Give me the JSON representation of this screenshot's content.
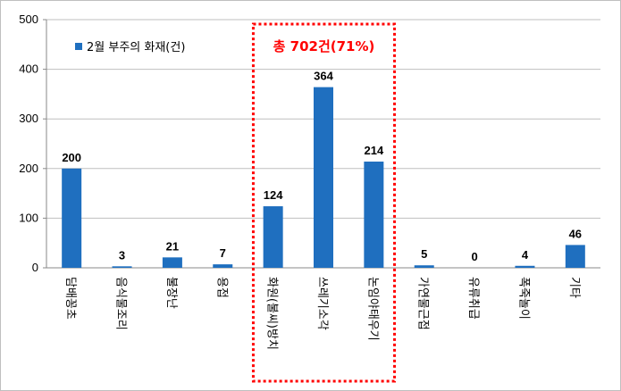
{
  "chart_data": {
    "type": "bar",
    "categories": [
      "담배꽁초",
      "음식물조리",
      "불장난",
      "용접",
      "화원(불씨)방치",
      "쓰레기소각",
      "논임야태우기",
      "가연물근접",
      "유류취급",
      "폭죽놀이",
      "기타"
    ],
    "series": [
      {
        "name": "2월 부주의 화재(건)",
        "values": [
          200,
          3,
          21,
          7,
          124,
          364,
          214,
          5,
          0,
          4,
          46
        ]
      }
    ],
    "ylim": [
      0,
      500
    ],
    "yticks": [
      0,
      100,
      200,
      300,
      400,
      500
    ],
    "grid": true,
    "legend_position": "top-left",
    "annotation": {
      "text": "총 702건(71%)",
      "highlighted_categories": [
        "화원(불씨)방치",
        "쓰레기소각",
        "논임야태우기"
      ]
    },
    "colors": {
      "bar": "#1f6fbf",
      "grid": "#bfbfbf",
      "highlight": "#ff0000"
    }
  }
}
